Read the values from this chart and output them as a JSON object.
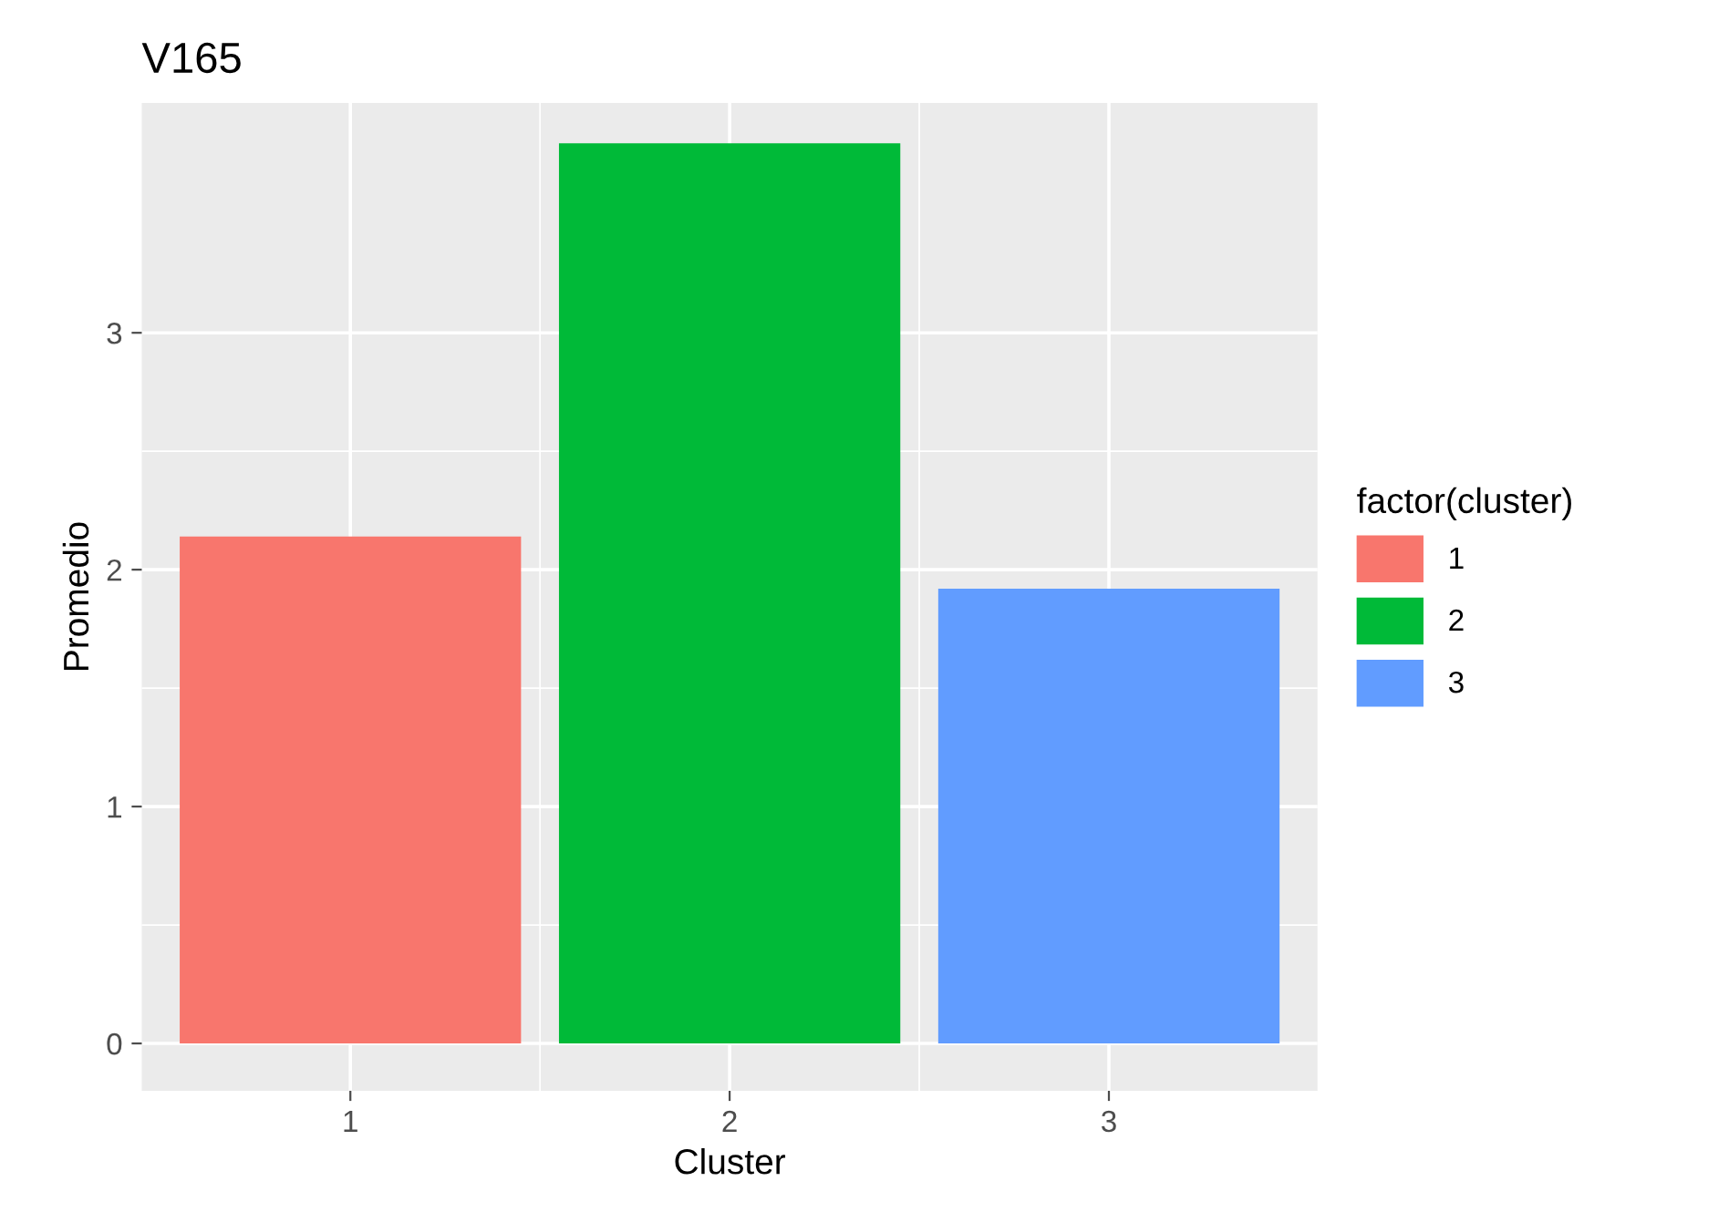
{
  "chart_data": {
    "type": "bar",
    "title": "V165",
    "xlabel": "Cluster",
    "ylabel": "Promedio",
    "legend_title": "factor(cluster)",
    "categories": [
      "1",
      "2",
      "3"
    ],
    "series": [
      {
        "name": "1",
        "color": "#f8766d",
        "values": [
          2.14,
          null,
          null
        ]
      },
      {
        "name": "2",
        "color": "#00ba38",
        "values": [
          null,
          3.8,
          null
        ]
      },
      {
        "name": "3",
        "color": "#619cff",
        "values": [
          null,
          null,
          1.92
        ]
      }
    ],
    "ylim": [
      -0.2,
      3.97
    ],
    "yticks": [
      0,
      1,
      2,
      3
    ],
    "grid": true,
    "legend": "right"
  }
}
